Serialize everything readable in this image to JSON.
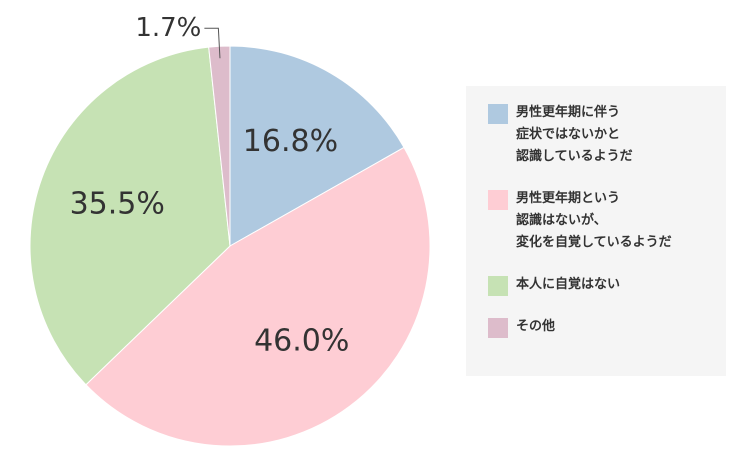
{
  "chart_data": {
    "type": "pie",
    "series": [
      {
        "name": "男性更年期に伴う\n症状ではないかと\n認識しているようだ",
        "color": "#afc9e0",
        "values": [
          16.8
        ],
        "value_labels": [
          "16.8%"
        ]
      },
      {
        "name": "男性更年期という\n認識はないが、\n変化を自覚しているようだ",
        "color": "#fecdd4",
        "values": [
          46.0
        ],
        "value_labels": [
          "46.0%"
        ]
      },
      {
        "name": "本人に自覚はない",
        "color": "#c6e2b4",
        "values": [
          35.5
        ],
        "value_labels": [
          "35.5%"
        ]
      },
      {
        "name": "その他",
        "color": "#ddbccb",
        "values": [
          1.7
        ],
        "value_labels": [
          "1.7%"
        ]
      }
    ]
  }
}
